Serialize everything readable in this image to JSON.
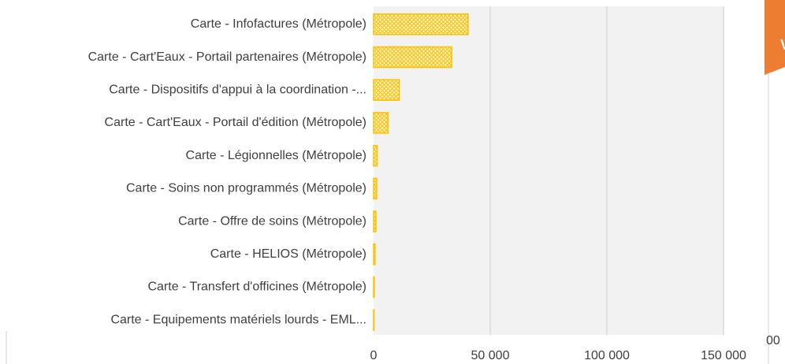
{
  "chart_data": {
    "type": "barh",
    "categories": [
      "Carte - Infofactures (Métropole)",
      "Carte - Cart'Eaux - Portail partenaires (Métropole)",
      "Carte - Dispositifs d'appui à la coordination -...",
      "Carte - Cart'Eaux - Portail d'édition (Métropole)",
      "Carte - Légionnelles (Métropole)",
      "Carte - Soins non programmés (Métropole)",
      "Carte - Offre de soins (Métropole)",
      "Carte - HELIOS (Métropole)",
      "Carte - Transfert d'officines (Métropole)",
      "Carte - Equipements matériels lourds - EML..."
    ],
    "values": [
      40500,
      33500,
      11000,
      6200,
      1500,
      1300,
      1000,
      600,
      300,
      200
    ],
    "color": "#ffc000",
    "xlim": [
      0,
      150000
    ],
    "xticks": [
      0,
      {
        "value": 50000,
        "label": "50 000"
      },
      {
        "value": 100000,
        "label": "100 000"
      },
      {
        "value": 150000,
        "label": "150 000"
      }
    ],
    "grid": true
  },
  "fragments": {
    "top_right": "V",
    "bottom_right": "00"
  }
}
